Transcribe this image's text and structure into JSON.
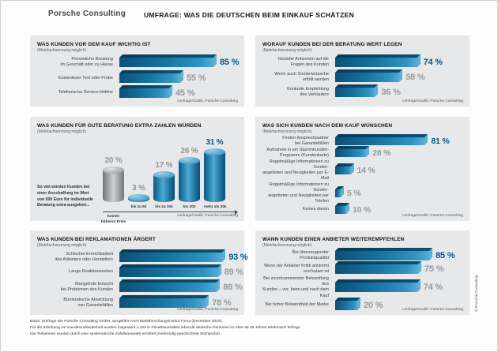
{
  "header": {
    "logo": "Porsche Consulting",
    "title": "UMFRAGE: WAS DIE DEUTSCHEN BEIM EINKAUF SCHÄTZEN"
  },
  "colors": {
    "highlight_blue": "#00578a",
    "value_gray": "#97999c",
    "bar_dark": "#0c5076",
    "bar_light": "#55acd4",
    "panel_bg": "#e7e8e9"
  },
  "chart_data": [
    {
      "type": "bar",
      "variant": "horizontal-3d",
      "title": "WAS KUNDEN VOR DEM KAUF WICHTIG IST",
      "note": "(Mehrfachnennung möglich)",
      "categories": [
        "Persönliche Beratung\nim Geschäft oder zu Hause",
        "Kostenloser Test oder Probe",
        "Telefonische Service-Hotline"
      ],
      "values": [
        85,
        55,
        45
      ],
      "unit": "%",
      "highlight_index": 0,
      "source": "Umfrage/Grafik: Porsche Consulting"
    },
    {
      "type": "bar",
      "variant": "horizontal-3d",
      "title": "WORAUF KUNDEN BEI DER BERATUNG WERT LEGEN",
      "note": "(Mehrfachnennung möglich)",
      "categories": [
        "Gezielte Antworten auf die\nFragen des Kunden",
        "Wenn auch Sonderwünsche\nerfüllt werden",
        "Konkrete Empfehlung\ndes Verkäufers"
      ],
      "values": [
        74,
        58,
        36
      ],
      "unit": "%",
      "highlight_index": 0,
      "source": "Umfrage/Grafik: Porsche Consulting"
    },
    {
      "type": "bar",
      "variant": "cylinder-column",
      "title": "WAS KUNDEN FÜR GUTE BERATUNG EXTRA ZAHLEN WÜRDEN",
      "note": "(Mehrfachnennung möglich)",
      "side_note": "So viel würden Kunden bei\neiner Anschaffung im Wert\nvon 500 Euro für individuelle\nBeratung extra ausgeben...",
      "categories": [
        "Keinen\nhöheren Preis",
        "bis zu 5€",
        "bis zu 10€",
        "bis 20€",
        "mehr als 20€"
      ],
      "values": [
        20,
        3,
        17,
        26,
        31
      ],
      "unit": "%",
      "styles": [
        "gray",
        "blue",
        "blue",
        "blue",
        "blue"
      ],
      "highlight_index": 4,
      "source": "Umfrage/Grafik: Porsche Consulting"
    },
    {
      "type": "bar",
      "variant": "horizontal-3d",
      "title": "WAS SICH KUNDEN NACH DEM KAUF WÜNSCHEN",
      "note": "(Mehrfachnennung möglich)",
      "categories": [
        "Festen Ansprechpartner\nbei Garantiefällen",
        "Aufnahme in ein Stammkunden-\nProgramm (Kundenkarte)",
        "Regelmäßige Informationen zu Sonder-\nangeboten und Neuigkeiten per E-Mail",
        "Regelmäßige Informationen zu Sonder-\nangeboten und Neuigkeiten per Telefon",
        "Keines davon"
      ],
      "values": [
        81,
        28,
        14,
        5,
        10
      ],
      "unit": "%",
      "highlight_index": 0,
      "source": "Umfrage/Grafik: Porsche Consulting"
    },
    {
      "type": "bar",
      "variant": "horizontal-3d",
      "title": "WAS KUNDEN BEI REKLAMATIONEN ÄRGERT",
      "note": "(Mehrfachnennung möglich)",
      "categories": [
        "Schlechte Erreichbarkeit\ndes Anbieters oder Herstellers",
        "Lange Reaktionszeiten",
        "Mangelnde Einsicht\nbei Problemen des Kunden",
        "Bürokratische Abwicklung\nvon Garantiefällen"
      ],
      "values": [
        93,
        89,
        88,
        78
      ],
      "unit": "%",
      "highlight_index": 0,
      "source": "Umfrage/Grafik: Porsche Consulting"
    },
    {
      "type": "bar",
      "variant": "horizontal-3d",
      "title": "WANN KUNDEN EINEN ANBIETER WEITEREMPFEHLEN",
      "note": "(Mehrfachnennung möglich)",
      "categories": [
        "Bei überzeugender Produktqualität",
        "Wenn der Anbieter Kritik annimmt\nund kulant ist",
        "Bei zuvorkommender Behandlung des\nKunden – vor, beim und nach dem Kauf",
        "Bei hoher Bekanntheit der Marke"
      ],
      "values": [
        85,
        75,
        74,
        20
      ],
      "unit": "%",
      "highlight_index": 0,
      "source": "Umfrage/Grafik: Porsche Consulting"
    }
  ],
  "footer": {
    "lines": [
      "Basis: Umfrage der Porsche Consulting GmbH, ausgeführt vom Marktforschungsinstitut Forsa (Dezember 2015).",
      "Für die Erhebung zur Kundenzufriedenheit wurden insgesamt 1.103 in Privathaushalten lebende deutsche Personen im Alter ab 25 Jahren telefonisch befragt.",
      "Die Teilnehmer wurden durch eine systematische Zufallsauswahl ermittelt (mehrstufig geschichtete Stichprobe)."
    ]
  },
  "copyright": "© Porsche Consulting"
}
